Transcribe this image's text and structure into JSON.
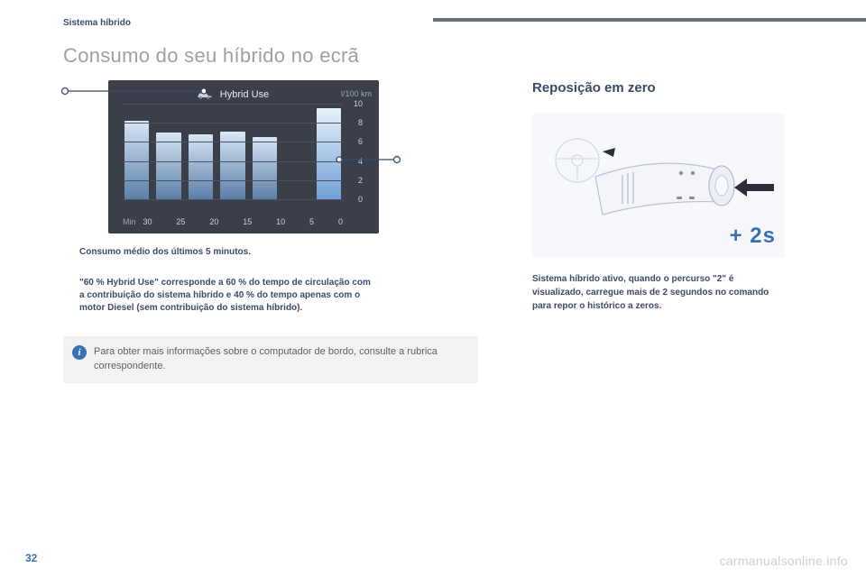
{
  "section_header": "Sistema híbrido",
  "page_title": "Consumo do seu híbrido no ecrã",
  "chart": {
    "type": "bar",
    "title": "Hybrid Use",
    "unit": "l/100 km",
    "xlabel": "Min",
    "xticks": [
      "30",
      "25",
      "20",
      "15",
      "10",
      "5",
      "0"
    ],
    "yticks": [
      "10",
      "8",
      "6",
      "4",
      "2",
      "0"
    ],
    "ylim_max": 10,
    "values": [
      8.2,
      7.0,
      6.8,
      7.1,
      6.5,
      0,
      9.5
    ],
    "bar_gradient_top": "#d9e6f5",
    "bar_gradient_bottom": "#5a7fa8",
    "highlight_bar_top": "#e8f1fb",
    "highlight_bar_bottom": "#6fa0d4",
    "background": "#3a3f4a",
    "grid_color": "#4a5262",
    "text_color": "#c8d2e0"
  },
  "caption1": "Consumo médio dos últimos 5 minutos.",
  "caption2": "\"60 % Hybrid Use\" corresponde a 60 % do tempo de circulação com a contribuição do sistema híbrido e 40 % do tempo apenas com o motor Diesel (sem contribuição do sistema híbrido).",
  "info_text": "Para obter mais informações sobre o computador de bordo, consulte a rubrica correspondente.",
  "right": {
    "title": "Reposição em zero",
    "caption": "Sistema híbrido ativo, quando o percurso \"2\" é visualizado, carregue mais de 2 segundos no comando para repor o histórico a zeros.",
    "badge": "+ 2s"
  },
  "page_number": "32",
  "watermark": "carmanualsonline.info"
}
